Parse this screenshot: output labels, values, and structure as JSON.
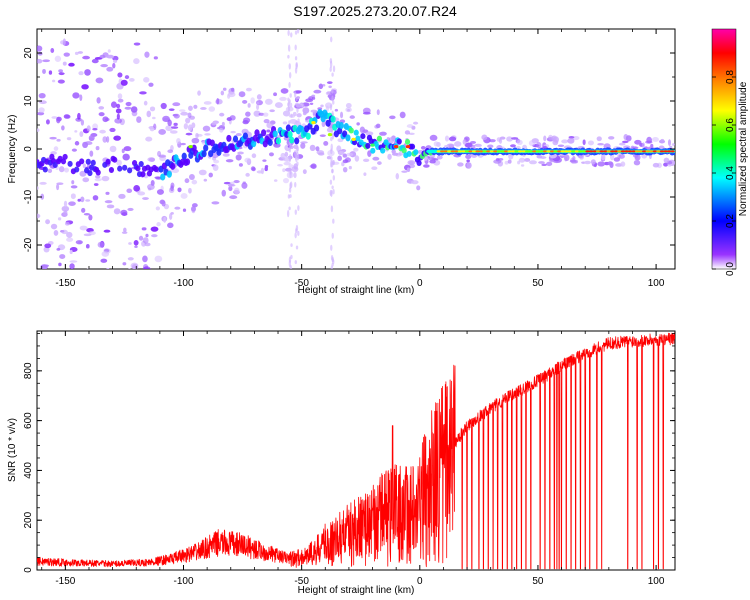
{
  "title": "S197.2025.273.20.07.R24",
  "chart_data": [
    {
      "type": "heatmap",
      "xlabel": "Height of straight line (km)",
      "ylabel": "Frequency (Hz)",
      "xlim": [
        -162,
        108
      ],
      "ylim": [
        -25,
        25
      ],
      "x_ticks": [
        -150,
        -100,
        -50,
        0,
        50,
        100
      ],
      "y_ticks": [
        -20,
        -10,
        0,
        10,
        20
      ],
      "colorbar": {
        "label": "Normalized spectral amplitude",
        "range": [
          0,
          1
        ],
        "ticks": [
          "0.0",
          "0.2",
          "0.4",
          "0.6",
          "0.8"
        ],
        "colors": [
          "#ffffff",
          "#8800ff",
          "#0000ff",
          "#00ffff",
          "#00ff00",
          "#ffff00",
          "#ff8800",
          "#ff0000",
          "#ff00aa"
        ]
      },
      "ridge": {
        "x": [
          -150,
          -140,
          -130,
          -120,
          -110,
          -100,
          -90,
          -80,
          -70,
          -60,
          -50,
          -45,
          -40,
          -35,
          -30,
          -20,
          -10,
          -5,
          0,
          3,
          10,
          20,
          40,
          60,
          80,
          100,
          108
        ],
        "y": [
          -3,
          -4,
          -3,
          -4,
          -5,
          -2,
          0,
          1,
          2,
          3,
          3,
          5,
          7,
          4,
          3,
          1,
          0.5,
          0,
          -2,
          -0.5,
          -0.5,
          -0.5,
          -0.5,
          -0.5,
          -0.5,
          -0.5,
          -0.5
        ]
      }
    },
    {
      "type": "line",
      "xlabel": "Height of straight line (km)",
      "ylabel": "SNR (10 * v/v)",
      "xlim": [
        -162,
        108
      ],
      "ylim": [
        0,
        960
      ],
      "x_ticks": [
        -150,
        -100,
        -50,
        0,
        50,
        100
      ],
      "y_ticks": [
        0,
        200,
        400,
        600,
        800
      ],
      "line_color": "#ff0000",
      "envelope": {
        "x": [
          -162,
          -150,
          -130,
          -115,
          -105,
          -95,
          -85,
          -75,
          -65,
          -55,
          -50,
          -45,
          -40,
          -35,
          -30,
          -25,
          -20,
          -15,
          -10,
          -5,
          0,
          5,
          10,
          15,
          20,
          30,
          40,
          50,
          60,
          70,
          80,
          90,
          100,
          108
        ],
        "y": [
          35,
          30,
          25,
          30,
          45,
          70,
          110,
          100,
          70,
          45,
          50,
          70,
          110,
          130,
          160,
          180,
          200,
          240,
          260,
          250,
          300,
          380,
          450,
          510,
          580,
          650,
          710,
          760,
          820,
          870,
          910,
          920,
          925,
          930
        ]
      },
      "spikes": [
        {
          "x": -11.5,
          "y": 580
        },
        {
          "x": -4,
          "y": 380
        },
        {
          "x": 9,
          "y": 450
        }
      ],
      "dropouts": [
        18,
        20,
        22,
        25,
        27,
        29,
        31,
        33,
        35,
        37,
        39,
        41,
        43,
        45,
        47,
        51,
        53,
        55,
        57,
        58,
        59,
        60,
        62,
        64,
        66,
        68,
        70,
        72,
        75,
        77,
        88,
        92,
        94,
        99,
        101,
        103
      ]
    }
  ]
}
